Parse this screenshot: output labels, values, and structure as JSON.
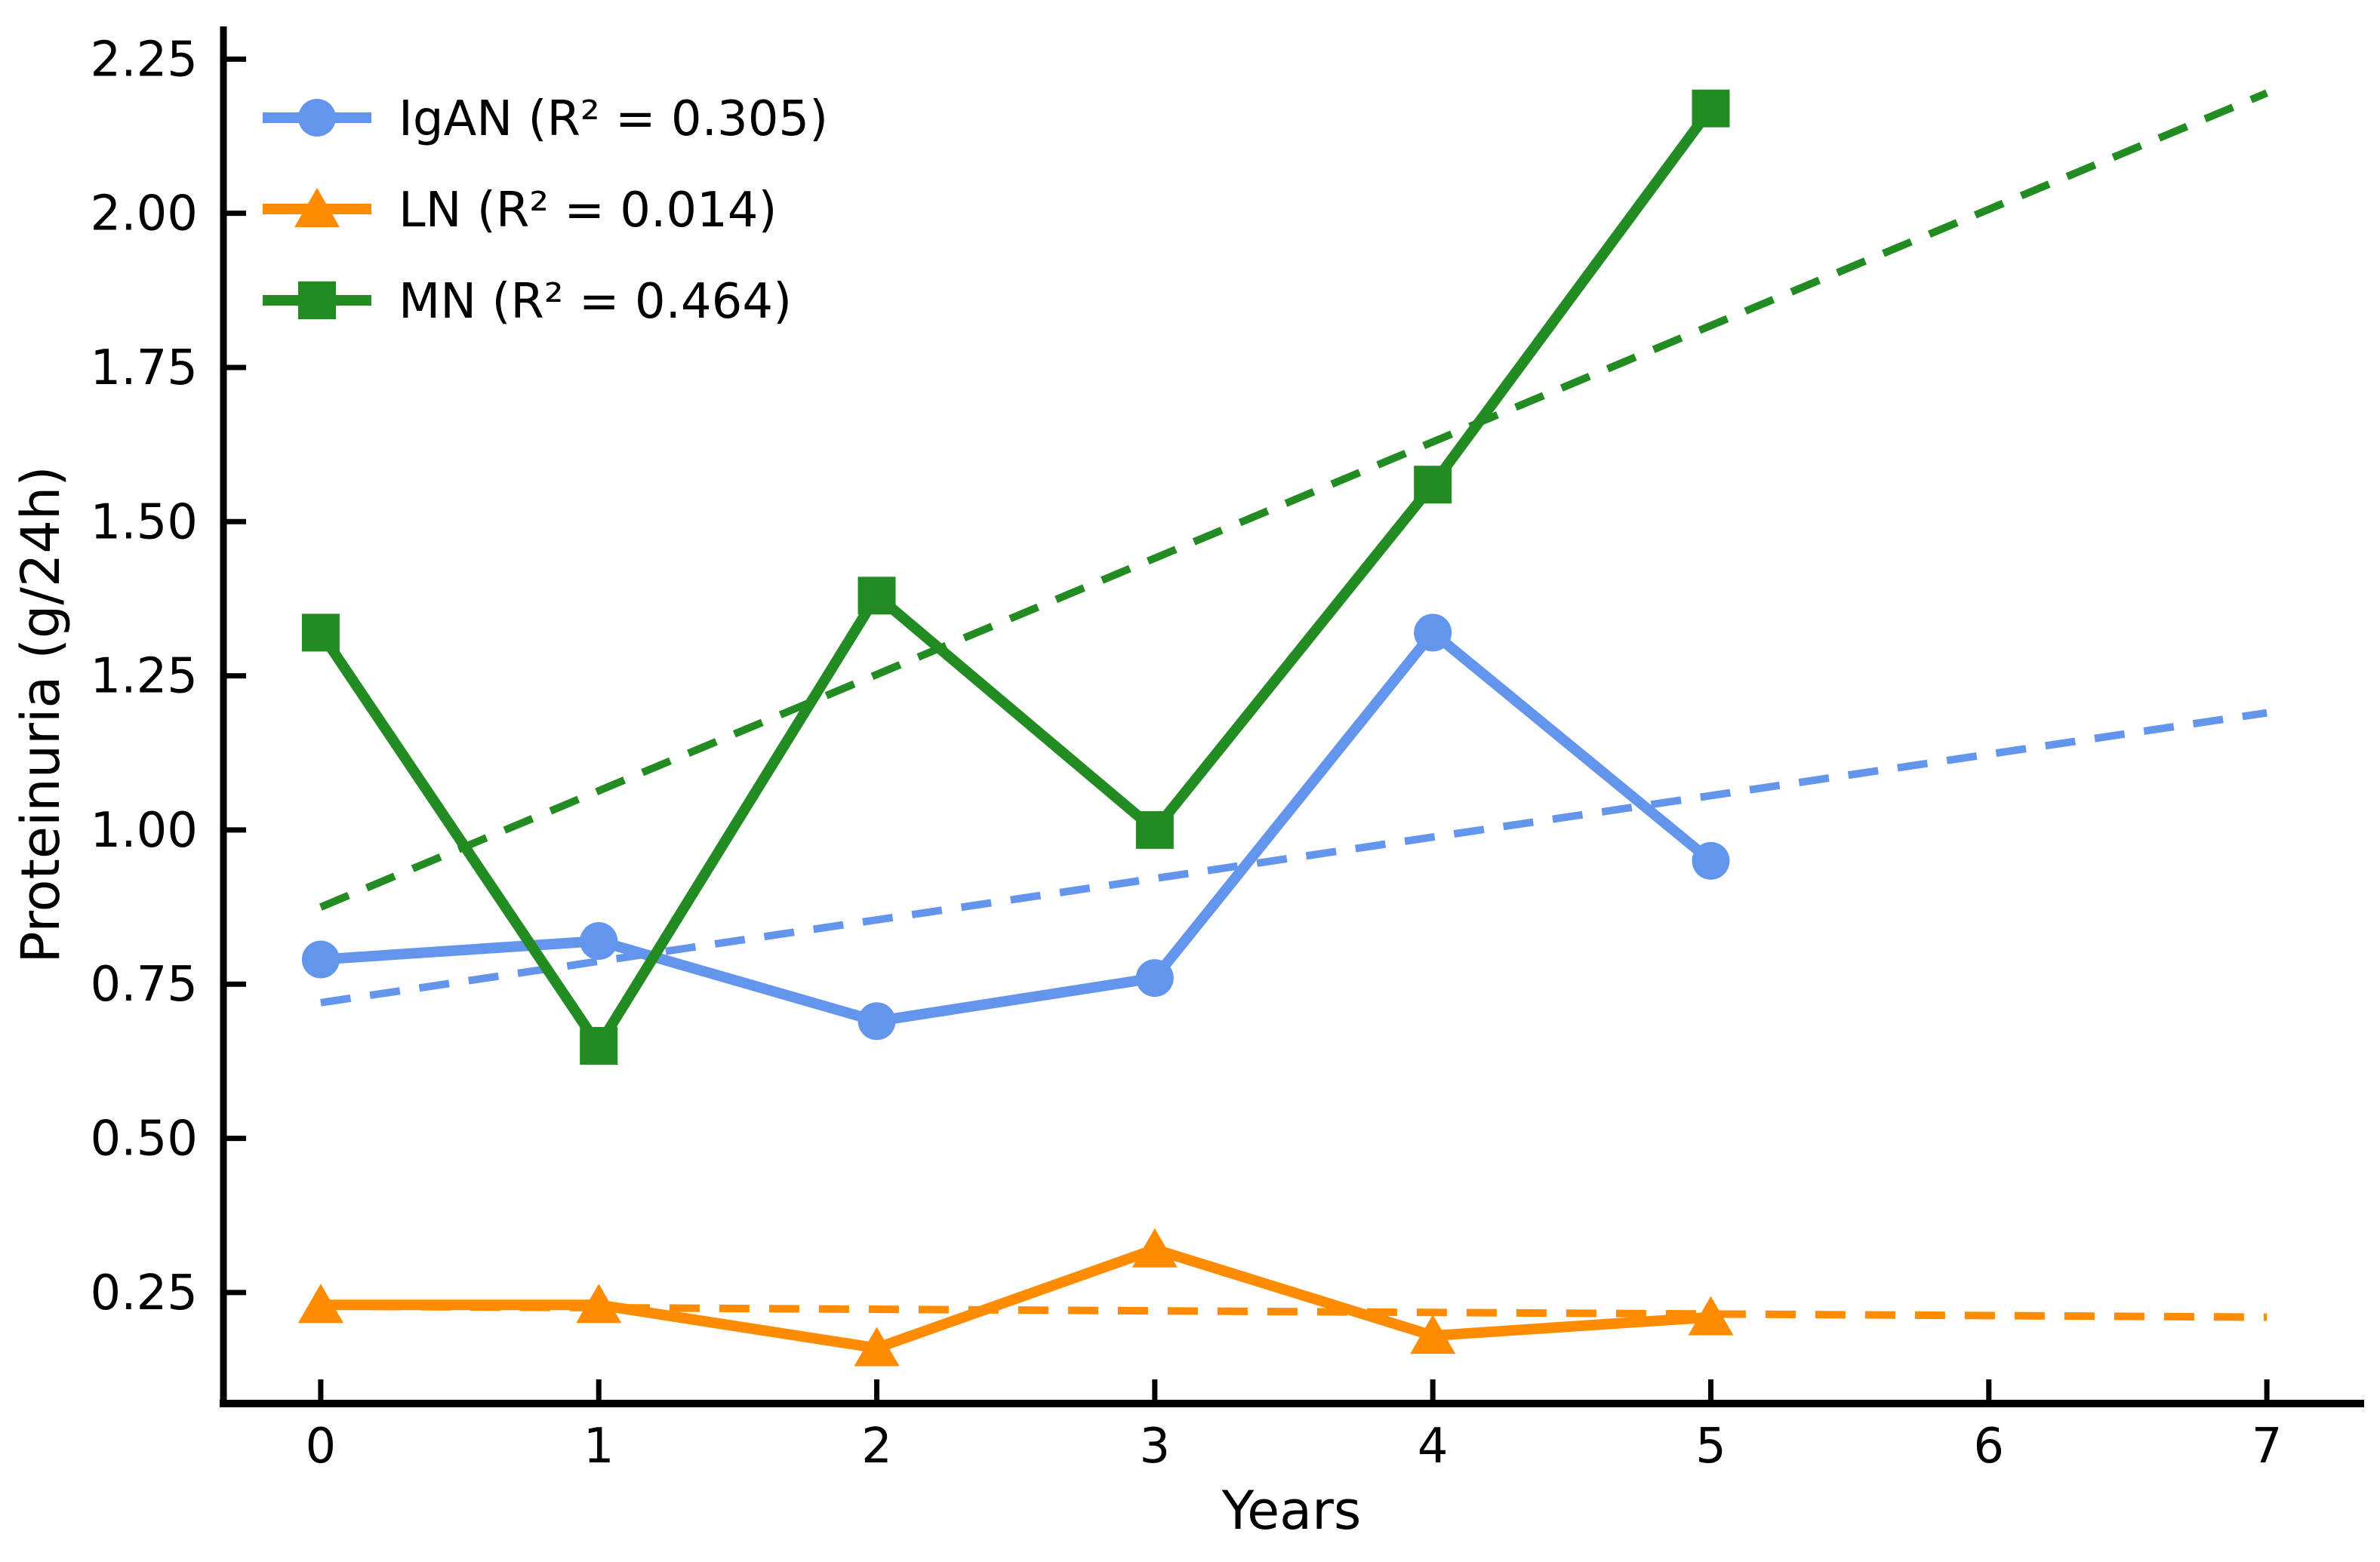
{
  "chart_data": {
    "type": "line",
    "title": "",
    "xlabel": "Years",
    "ylabel": "Proteinuria (g/24h)",
    "xlim": [
      -0.35,
      7.35
    ],
    "ylim": [
      0.07,
      2.303
    ],
    "grid": false,
    "legend_position": "upper left",
    "background_color": "#ffffff",
    "axis_color": "#000000",
    "x": [
      0,
      1,
      2,
      3,
      4,
      5
    ],
    "xticks": [
      {
        "value": 0,
        "label": "0"
      },
      {
        "value": 1,
        "label": "1"
      },
      {
        "value": 2,
        "label": "2"
      },
      {
        "value": 3,
        "label": "3"
      },
      {
        "value": 4,
        "label": "4"
      },
      {
        "value": 5,
        "label": "5"
      },
      {
        "value": 6,
        "label": "6"
      },
      {
        "value": 7,
        "label": "7"
      }
    ],
    "yticks": [
      {
        "value": 0.25,
        "label": "0.25"
      },
      {
        "value": 0.5,
        "label": "0.50"
      },
      {
        "value": 0.75,
        "label": "0.75"
      },
      {
        "value": 1.0,
        "label": "1.00"
      },
      {
        "value": 1.25,
        "label": "1.25"
      },
      {
        "value": 1.5,
        "label": "1.50"
      },
      {
        "value": 1.75,
        "label": "1.75"
      },
      {
        "value": 2.0,
        "label": "2.00"
      },
      {
        "value": 2.25,
        "label": "2.25"
      }
    ],
    "series": [
      {
        "name": "IgAN",
        "r2": 0.305,
        "legend_label": "IgAN (R² = 0.305)",
        "color": "#6495ED",
        "marker": "circle",
        "values": [
          0.79,
          0.82,
          0.69,
          0.76,
          1.32,
          0.95
        ],
        "trend": {
          "x": [
            0,
            7
          ],
          "y": [
            0.72,
            1.19
          ]
        }
      },
      {
        "name": "LN",
        "r2": 0.014,
        "legend_label": "LN (R² = 0.014)",
        "color": "#FF8C00",
        "marker": "triangle",
        "values": [
          0.23,
          0.23,
          0.16,
          0.32,
          0.18,
          0.21
        ],
        "trend": {
          "x": [
            0,
            7
          ],
          "y": [
            0.228,
            0.21
          ]
        }
      },
      {
        "name": "MN",
        "r2": 0.464,
        "legend_label": "MN (R² = 0.464)",
        "color": "#228B22",
        "marker": "square",
        "values": [
          1.32,
          0.65,
          1.38,
          1.0,
          1.56,
          2.17
        ],
        "trend": {
          "x": [
            0,
            7
          ],
          "y": [
            0.875,
            2.195
          ]
        }
      }
    ]
  }
}
